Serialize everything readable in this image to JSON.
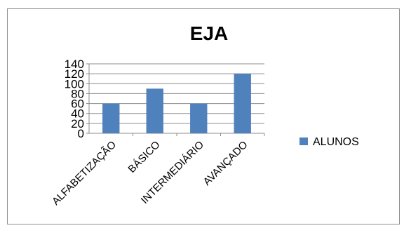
{
  "chart_data": {
    "type": "bar",
    "title": "EJA",
    "categories": [
      "ALFABETIZAÇÃO",
      "BÁSICO",
      "INTERMEDIÁRIO",
      "AVANÇADO"
    ],
    "series": [
      {
        "name": "ALUNOS",
        "values": [
          60,
          90,
          60,
          120
        ],
        "color": "#4f81bd"
      }
    ],
    "ylim": [
      0,
      140
    ],
    "yticks": [
      "0",
      "20",
      "40",
      "60",
      "80",
      "100",
      "120",
      "140"
    ],
    "grid": true,
    "legend_position": "right"
  }
}
